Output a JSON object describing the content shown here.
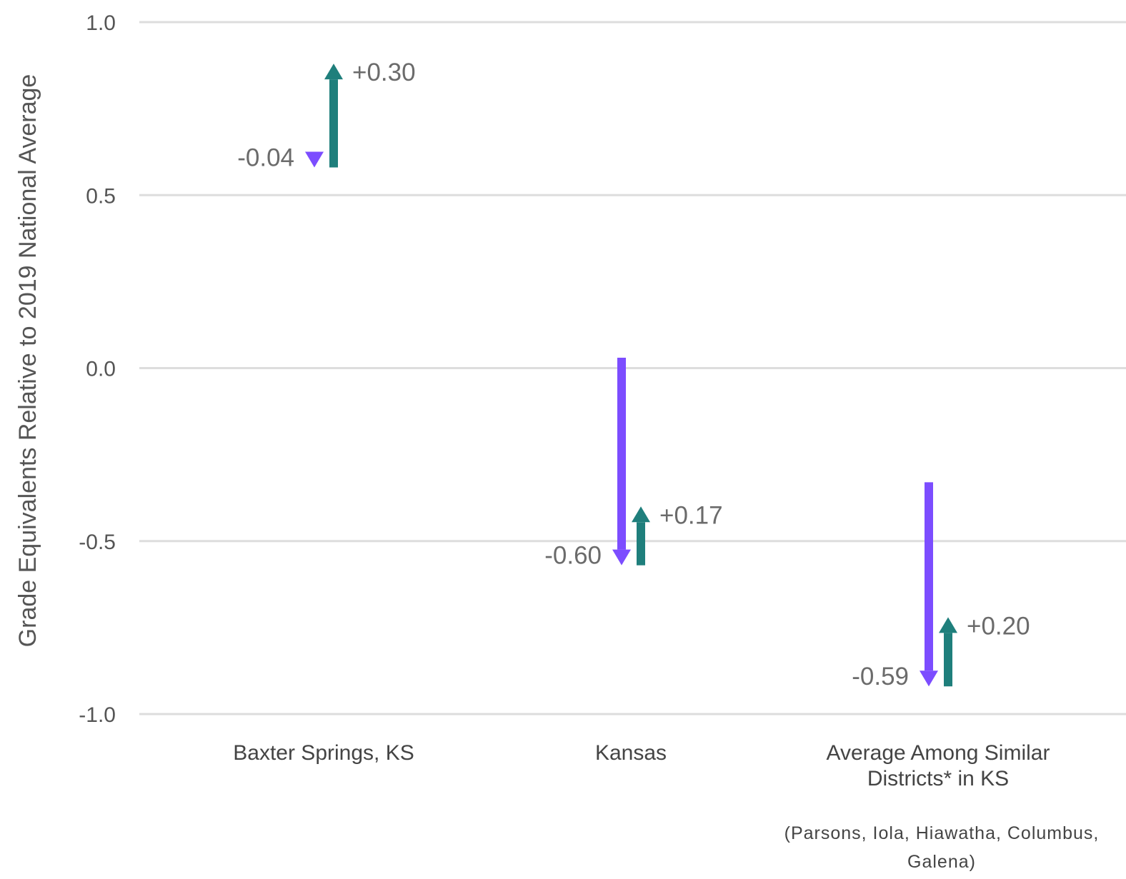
{
  "chart_data": {
    "type": "arrow",
    "ylabel": "Grade Equivalents Relative to 2019 National Average",
    "xlabel": "",
    "ylim": [
      -1.0,
      1.0
    ],
    "yticks": [
      "1.0",
      "0.5",
      "0.0",
      "-0.5",
      "-1.0"
    ],
    "ytick_values": [
      1.0,
      0.5,
      0.0,
      -0.5,
      -1.0
    ],
    "grid": true,
    "colors": {
      "decline": "#7c4dff",
      "recovery": "#1f7f7c",
      "grid": "#dddddd",
      "text": "#555555"
    },
    "categories": [
      {
        "label_lines": [
          "Baxter Springs, KS"
        ],
        "note_lines": []
      },
      {
        "label_lines": [
          "Kansas"
        ],
        "note_lines": []
      },
      {
        "label_lines": [
          "Average Among Similar",
          "Districts* in KS"
        ],
        "note_lines": [
          "(Parsons, Iola, Hiawatha, Columbus,",
          "Galena)"
        ]
      }
    ],
    "series": [
      {
        "category": "Baxter Springs, KS",
        "start": 0.62,
        "decline": -0.04,
        "decline_label": "-0.04",
        "recovery": 0.3,
        "recovery_label": "+0.30"
      },
      {
        "category": "Kansas",
        "start": 0.03,
        "decline": -0.6,
        "decline_label": "-0.60",
        "recovery": 0.17,
        "recovery_label": "+0.17"
      },
      {
        "category": "Average Among Similar Districts* in KS",
        "start": -0.33,
        "decline": -0.59,
        "decline_label": "-0.59",
        "recovery": 0.2,
        "recovery_label": "+0.20"
      }
    ]
  }
}
